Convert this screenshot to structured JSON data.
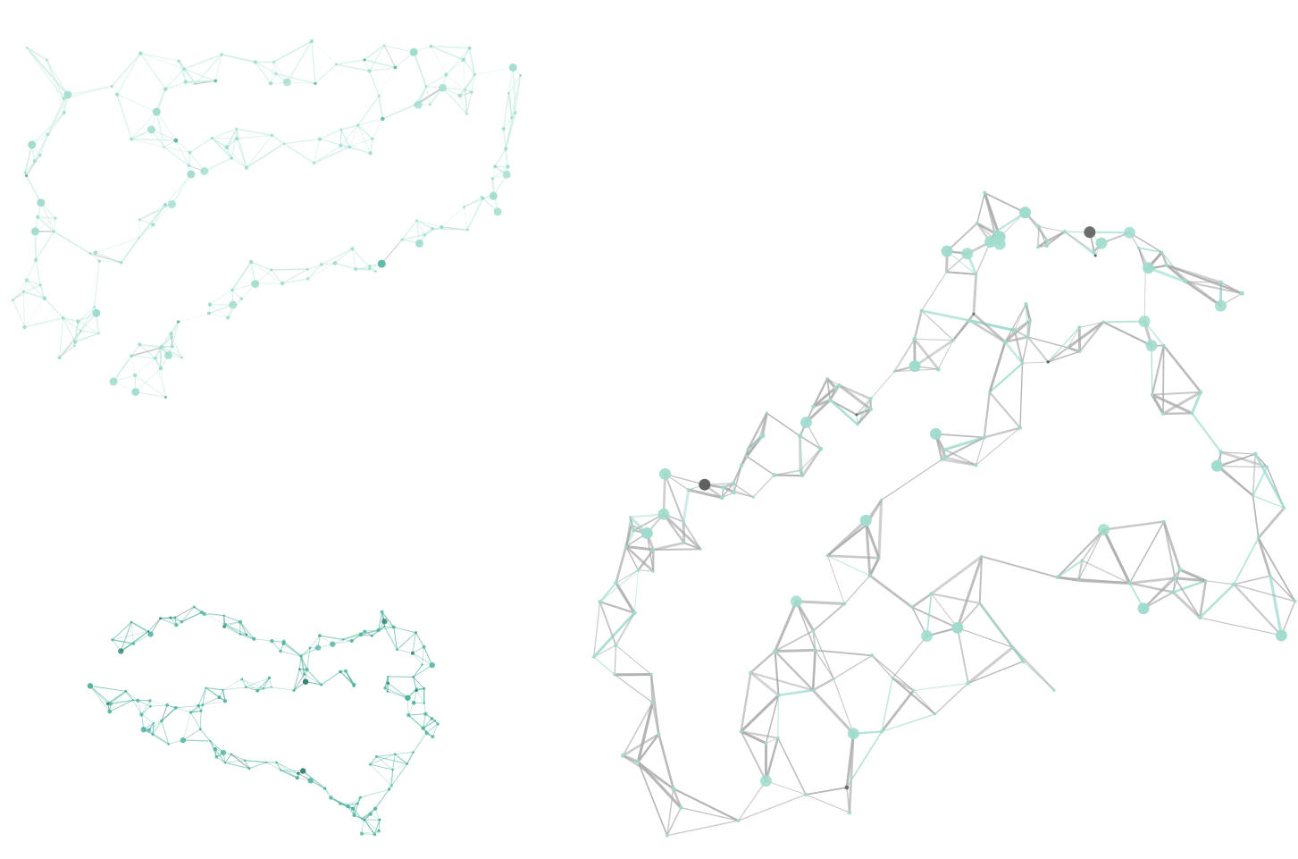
{
  "scene": {
    "subject": "plexus-mesh-illustration",
    "background": "#ffffff",
    "palette": {
      "mint": "#9fdccd",
      "mint_light": "#c9ece3",
      "teal": "#52b39f",
      "gray": "#a9a9a9",
      "gray_dark": "#5f5f5f"
    }
  },
  "meshes": [
    {
      "name": "mesh-top-left",
      "style": "mint-light"
    },
    {
      "name": "mesh-bottom-left",
      "style": "teal"
    },
    {
      "name": "mesh-right",
      "style": "gray-mint"
    }
  ]
}
